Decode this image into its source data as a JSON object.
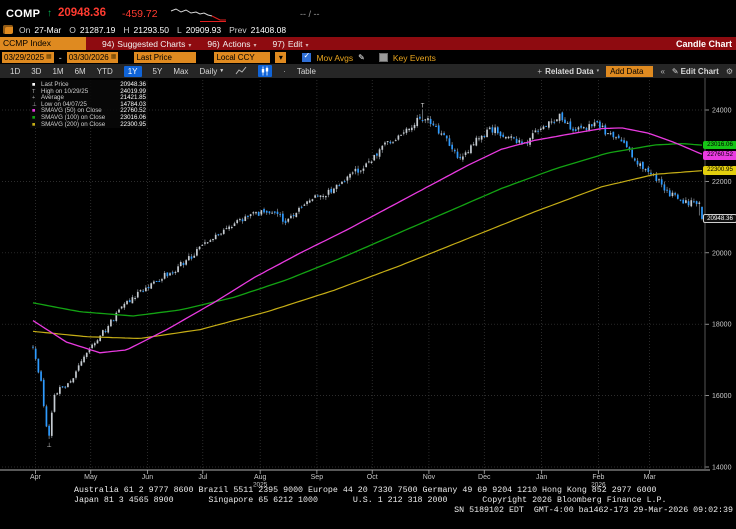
{
  "header": {
    "ticker": "COMP",
    "direction_arrow": "↑",
    "last_price": "20948.36",
    "change": "-459.72",
    "quote_placeholder": "-- / --",
    "session": {
      "on_label": "On",
      "date": "27-Mar",
      "open_label": "O",
      "open": "21287.19",
      "high_label": "H",
      "high": "21293.50",
      "low_label": "L",
      "low": "20909.93",
      "prev_label": "Prev",
      "prev_close": "21408.08"
    }
  },
  "menu_bar": {
    "security_input": "CCMP Index",
    "items": [
      {
        "key": "94)",
        "label": "Suggested Charts"
      },
      {
        "key": "96)",
        "label": "Actions"
      },
      {
        "key": "97)",
        "label": "Edit"
      }
    ],
    "chart_type_label": "Candle Chart"
  },
  "controls": {
    "date_from": "03/29/2025",
    "range_sep": "-",
    "date_to": "03/30/2026",
    "price_field": "Last Price",
    "currency": "Local CCY",
    "mov_avgs_label": "Mov Avgs",
    "mov_avgs_checked": true,
    "key_events_label": "Key Events",
    "key_events_checked": false
  },
  "toolbar": {
    "periods": [
      "1D",
      "3D",
      "1M",
      "6M",
      "YTD",
      "1Y",
      "5Y",
      "Max"
    ],
    "active_period": "1Y",
    "frequency": "Daily",
    "table_label": "Table",
    "related_data_label": "Related Data",
    "add_data_label": "Add Data",
    "edit_chart_label": "Edit Chart"
  },
  "icons": {
    "caret_down": "▾",
    "caret_small": "▼",
    "plus": "+",
    "pencil": "✎",
    "gear": "⚙",
    "chevrons": "«",
    "dot": "·",
    "calendar": "▦"
  },
  "legend": {
    "rows": [
      {
        "marker": "■",
        "color": "#ffffff",
        "label": "Last Price",
        "value": "20948.36"
      },
      {
        "marker": "T",
        "color": "#b0b0b0",
        "label": "High on 10/29/25",
        "value": "24019.99"
      },
      {
        "marker": "+",
        "color": "#b0b0b0",
        "label": "Average",
        "value": "21421.85"
      },
      {
        "marker": "⊥",
        "color": "#b0b0b0",
        "label": "Low on 04/07/25",
        "value": "14784.03"
      },
      {
        "marker": "■",
        "color": "#e93ae0",
        "label": "SMAVG (50) on Close",
        "value": "22760.52"
      },
      {
        "marker": "■",
        "color": "#13a313",
        "label": "SMAVG (100) on Close",
        "value": "23016.06"
      },
      {
        "marker": "■",
        "color": "#c6ae16",
        "label": "SMAVG (200) on Close",
        "value": "22300.95"
      }
    ]
  },
  "chart_data": {
    "type": "candlestick",
    "security": "CCMP Index",
    "date_range": [
      "03/29/2025",
      "03/30/2026"
    ],
    "num_candles": 250,
    "y_axis": {
      "min": 14000,
      "max": 24000,
      "ticks": [
        14000,
        16000,
        18000,
        20000,
        22000,
        24000
      ]
    },
    "x_axis": {
      "month_labels": [
        "Apr",
        "May",
        "Jun",
        "Jul",
        "Aug",
        "Sep",
        "Oct",
        "Nov",
        "Dec",
        "Jan",
        "Feb",
        "Mar"
      ],
      "month_fractions": [
        0.008,
        0.09,
        0.174,
        0.256,
        0.341,
        0.425,
        0.507,
        0.591,
        0.673,
        0.758,
        0.842,
        0.918
      ],
      "year_labels": [
        {
          "month_index": 4,
          "year": "2025"
        },
        {
          "month_index": 10,
          "year": "2026"
        }
      ]
    },
    "stats": {
      "last": 20948.36,
      "high": {
        "date": "10/29/25",
        "value": 24019.99,
        "t": 0.583
      },
      "low": {
        "date": "04/07/25",
        "value": 14784.03,
        "t": 0.0241
      },
      "average": 21421.85
    },
    "last_candle": {
      "open": 21287.19,
      "high": 21293.5,
      "low": 20909.93,
      "close": 20948.36,
      "prev_close": 21408.08
    },
    "close_anchors": [
      [
        0,
        17300
      ],
      [
        0.012,
        16400
      ],
      [
        0.02,
        15150
      ],
      [
        0.0241,
        14920
      ],
      [
        0.032,
        16050
      ],
      [
        0.06,
        16500
      ],
      [
        0.08,
        17250
      ],
      [
        0.1,
        17650
      ],
      [
        0.13,
        18400
      ],
      [
        0.16,
        18900
      ],
      [
        0.18,
        19200
      ],
      [
        0.21,
        19500
      ],
      [
        0.24,
        19950
      ],
      [
        0.26,
        20300
      ],
      [
        0.3,
        20850
      ],
      [
        0.33,
        21100
      ],
      [
        0.36,
        21150
      ],
      [
        0.38,
        20850
      ],
      [
        0.41,
        21400
      ],
      [
        0.44,
        21700
      ],
      [
        0.47,
        22100
      ],
      [
        0.5,
        22500
      ],
      [
        0.53,
        23100
      ],
      [
        0.56,
        23430
      ],
      [
        0.583,
        23830
      ],
      [
        0.6,
        23480
      ],
      [
        0.617,
        23150
      ],
      [
        0.637,
        22600
      ],
      [
        0.66,
        23080
      ],
      [
        0.685,
        23480
      ],
      [
        0.71,
        23280
      ],
      [
        0.732,
        23020
      ],
      [
        0.76,
        23560
      ],
      [
        0.787,
        23800
      ],
      [
        0.81,
        23380
      ],
      [
        0.838,
        23620
      ],
      [
        0.862,
        23330
      ],
      [
        0.887,
        22950
      ],
      [
        0.91,
        22420
      ],
      [
        0.933,
        22080
      ],
      [
        0.952,
        21650
      ],
      [
        0.972,
        21380
      ],
      [
        0.992,
        21408.08
      ],
      [
        1,
        20948.36
      ]
    ],
    "smavg50_anchors": [
      [
        0,
        18100
      ],
      [
        0.05,
        17500
      ],
      [
        0.1,
        17200
      ],
      [
        0.14,
        17280
      ],
      [
        0.2,
        17850
      ],
      [
        0.27,
        18600
      ],
      [
        0.33,
        19300
      ],
      [
        0.4,
        20000
      ],
      [
        0.47,
        20650
      ],
      [
        0.53,
        21250
      ],
      [
        0.6,
        21950
      ],
      [
        0.65,
        22450
      ],
      [
        0.7,
        22900
      ],
      [
        0.75,
        23150
      ],
      [
        0.8,
        23320
      ],
      [
        0.85,
        23480
      ],
      [
        0.88,
        23500
      ],
      [
        0.92,
        23350
      ],
      [
        0.96,
        23080
      ],
      [
        1,
        22760.52
      ]
    ],
    "smavg100_anchors": [
      [
        0,
        18600
      ],
      [
        0.07,
        18350
      ],
      [
        0.15,
        18230
      ],
      [
        0.22,
        18400
      ],
      [
        0.3,
        18750
      ],
      [
        0.38,
        19250
      ],
      [
        0.46,
        19850
      ],
      [
        0.54,
        20500
      ],
      [
        0.62,
        21150
      ],
      [
        0.7,
        21800
      ],
      [
        0.78,
        22350
      ],
      [
        0.86,
        22800
      ],
      [
        0.93,
        23020
      ],
      [
        0.97,
        23060
      ],
      [
        1,
        23016.06
      ]
    ],
    "smavg200_anchors": [
      [
        0,
        17800
      ],
      [
        0.08,
        17650
      ],
      [
        0.16,
        17600
      ],
      [
        0.25,
        17850
      ],
      [
        0.35,
        18350
      ],
      [
        0.45,
        18950
      ],
      [
        0.55,
        19650
      ],
      [
        0.65,
        20400
      ],
      [
        0.75,
        21150
      ],
      [
        0.85,
        21850
      ],
      [
        0.93,
        22200
      ],
      [
        1,
        22300.95
      ]
    ],
    "colors": {
      "candle_up": "#c6ccd2",
      "candle_down": "#2e9bff",
      "wick": "#8d949b",
      "smavg50": "#e93ae0",
      "smavg100": "#13a313",
      "smavg200": "#c6ae16",
      "grid": "#3c3c3c",
      "axis": "#b0b0b0",
      "axis_text": "#c8c8c8"
    }
  },
  "axis_badges": [
    {
      "value": 23016.06,
      "label": "23016.06",
      "bg": "#16c516",
      "fg": "#000000",
      "border": ""
    },
    {
      "value": 22760.52,
      "label": "22760.52",
      "bg": "#e93ae0",
      "fg": "#000000",
      "border": ""
    },
    {
      "value": 22300.95,
      "label": "22300.95",
      "bg": "#e3cf0e",
      "fg": "#000000",
      "border": ""
    },
    {
      "value": 20948.36,
      "label": "20948.36",
      "bg": "#101010",
      "fg": "#ffffff",
      "border": "#cfcfcf"
    }
  ],
  "footer": {
    "line1": "Australia 61 2 9777 8600 Brazil 5511 2395 9000 Europe 44 20 7330 7500 Germany 49 69 9204 1210 Hong Kong 852 2977 6000",
    "line2": "Japan 81 3 4565 8900       Singapore 65 6212 1000       U.S. 1 212 318 2000       Copyright 2026 Bloomberg Finance L.P.",
    "line3": "SN 5189102 EDT  GMT-4:00 ba1462-173 29-Mar-2026 09:02:39"
  }
}
